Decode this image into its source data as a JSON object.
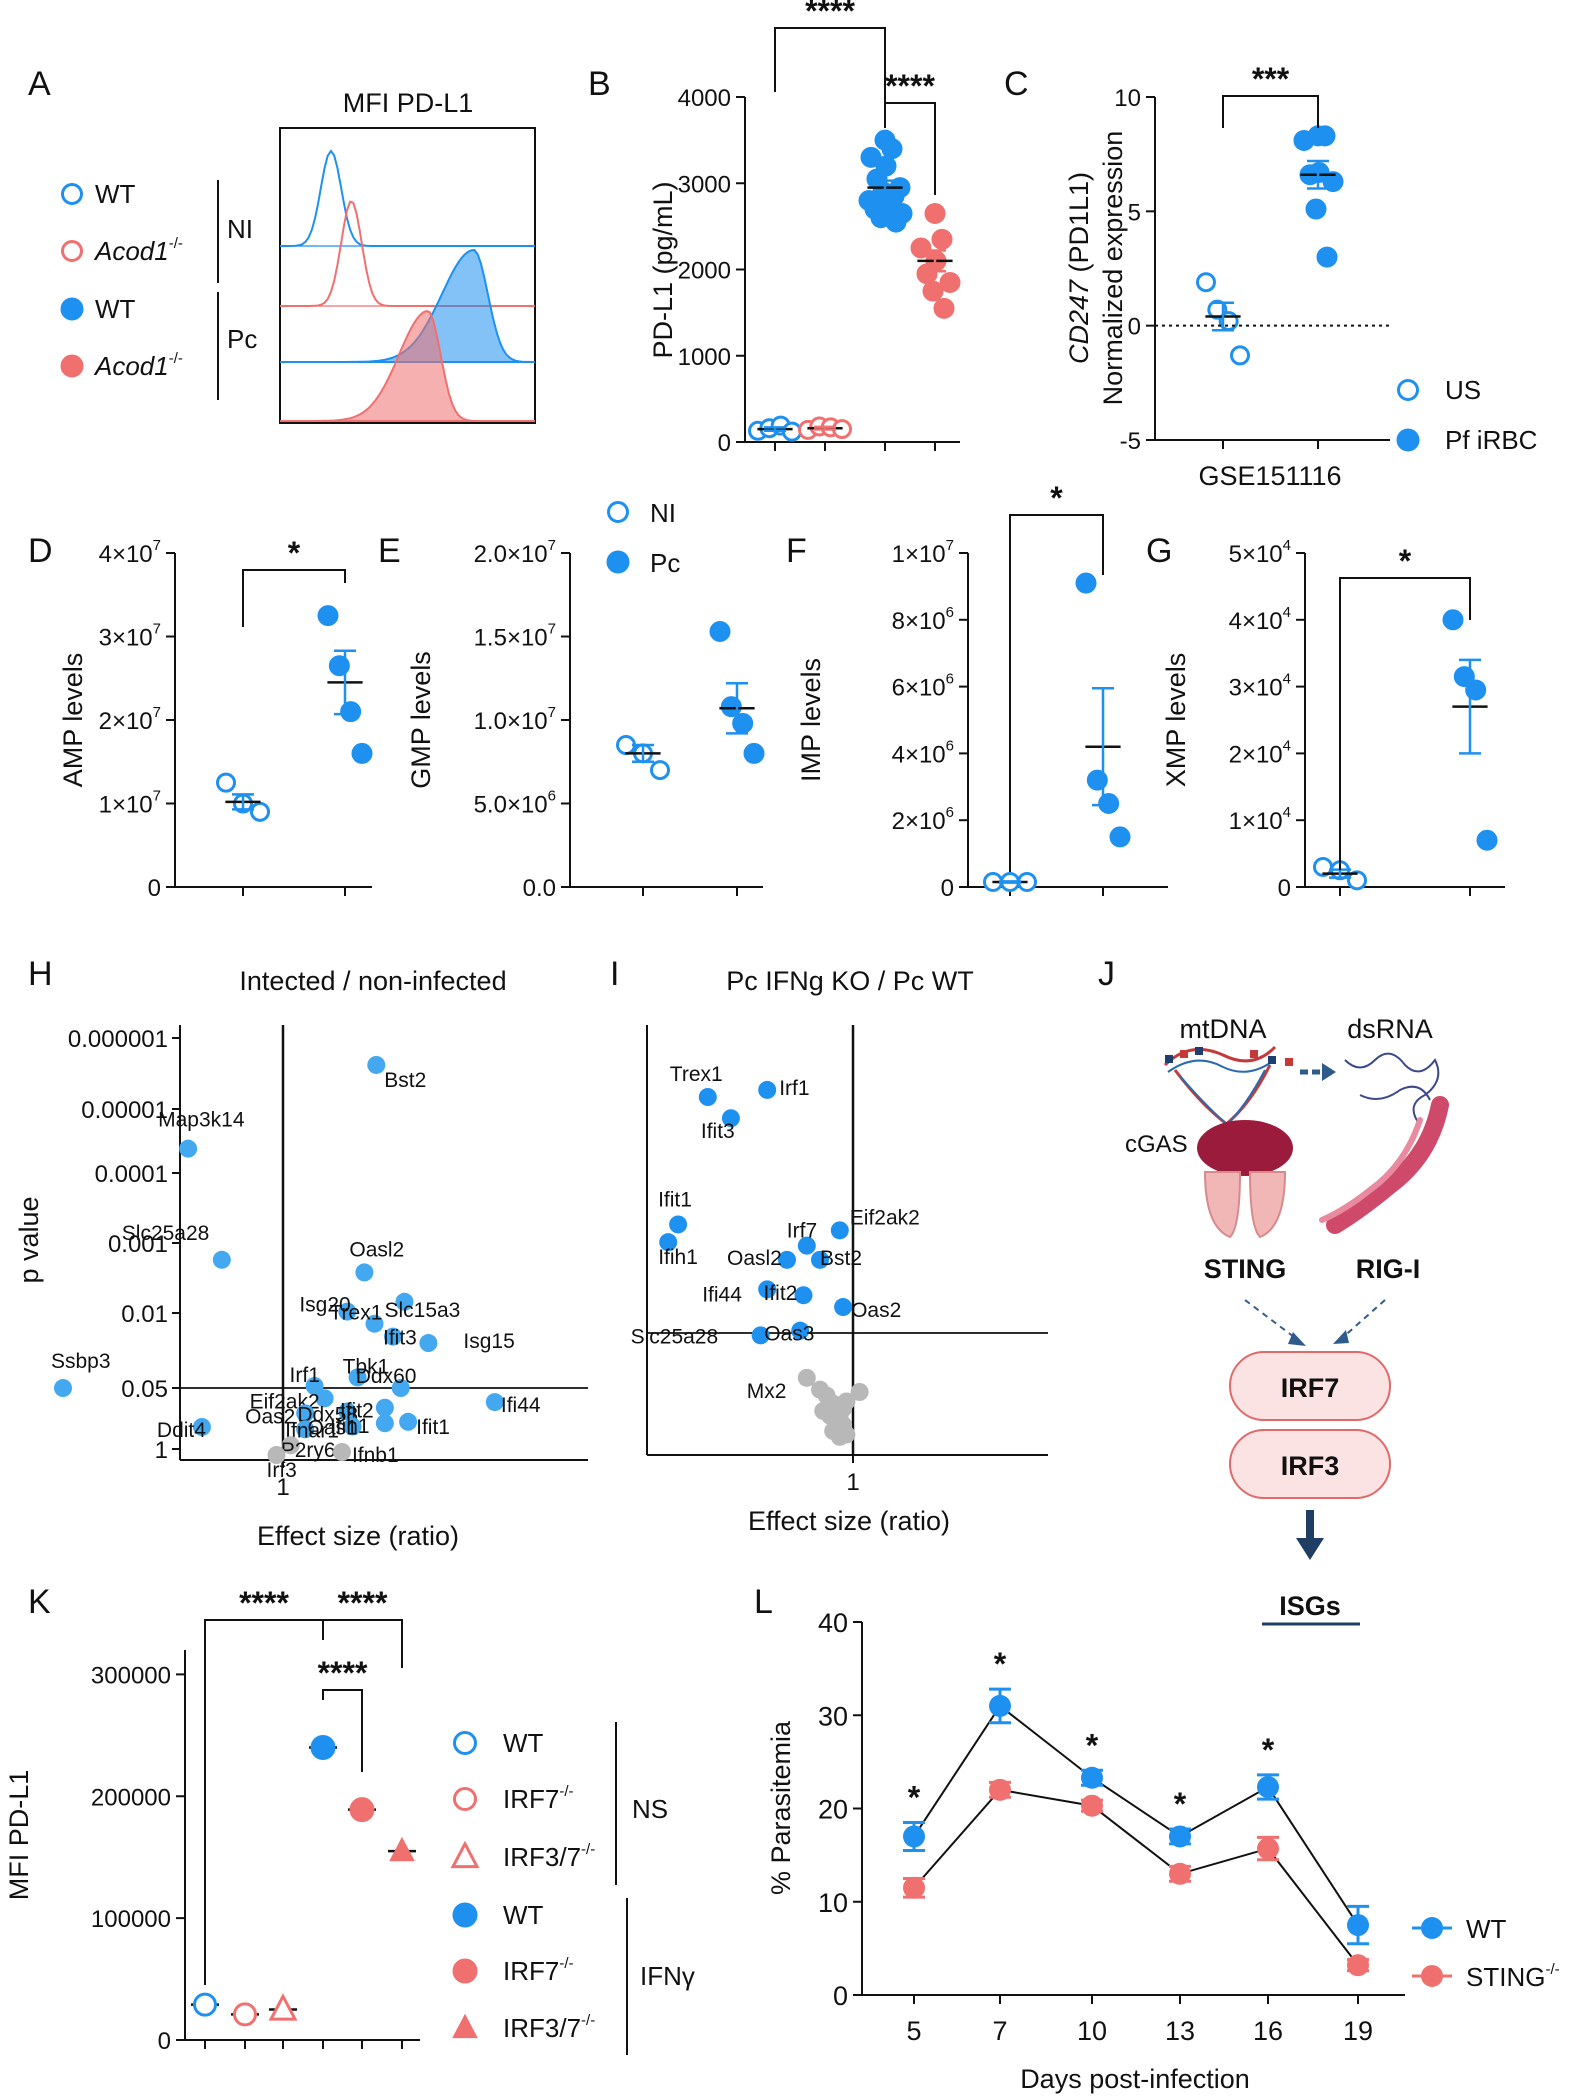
{
  "colors": {
    "wt": "#1e90ef",
    "ko": "#f07070",
    "gray": "#b8b8b8",
    "dark": "#1f3e64",
    "pathway": "#2f5b8a",
    "irfFill": "#fbe3e3",
    "irfStroke": "#e06a6a",
    "sting": "#9b1b3c",
    "rigi": "#cf4a6a"
  },
  "panel_labels": [
    "A",
    "B",
    "C",
    "D",
    "E",
    "F",
    "G",
    "H",
    "I",
    "J",
    "K",
    "L"
  ],
  "chart_data": [
    {
      "panel": "A",
      "type": "histogram",
      "title": "MFI PD-L1",
      "legend": [
        {
          "label": "WT",
          "style": "open-blue",
          "group": "NI"
        },
        {
          "label": "Acod1",
          "sup": "-/-",
          "style": "open-red",
          "group": "NI"
        },
        {
          "label": "WT",
          "style": "filled-blue",
          "group": "Pc"
        },
        {
          "label": "Acod1",
          "sup": "-/-",
          "style": "filled-red",
          "group": "Pc"
        }
      ],
      "groups": [
        "NI",
        "Pc"
      ],
      "traces": [
        {
          "name": "WT NI",
          "peak": 0.2,
          "width": 0.04,
          "filled": false,
          "color": "wt"
        },
        {
          "name": "Acod1-/- NI",
          "peak": 0.28,
          "width": 0.04,
          "filled": false,
          "color": "ko"
        },
        {
          "name": "WT Pc",
          "peak": 0.76,
          "width": 0.1,
          "filled": true,
          "color": "wt"
        },
        {
          "name": "Acod1-/- Pc",
          "peak": 0.58,
          "width": 0.09,
          "filled": true,
          "color": "ko"
        }
      ]
    },
    {
      "panel": "B",
      "type": "scatter",
      "ylabel": "PD-L1 (pg/mL)",
      "ylim": [
        0,
        4000
      ],
      "yticks": [
        "0",
        "1000",
        "2000",
        "3000",
        "4000"
      ],
      "groups": [
        {
          "name": "WT NI",
          "values": [
            130,
            160,
            190,
            120
          ],
          "mean": 150,
          "sem": 20,
          "style": "open-blue"
        },
        {
          "name": "Acod1-/- NI",
          "values": [
            140,
            180,
            170,
            150
          ],
          "mean": 160,
          "sem": 15,
          "style": "open-red"
        },
        {
          "name": "WT Pc",
          "values": [
            3500,
            3400,
            3300,
            3200,
            3050,
            2950,
            2900,
            2850,
            2800,
            2750,
            2700,
            2650,
            2600,
            2550
          ],
          "mean": 2950,
          "sem": 80,
          "style": "filled-blue"
        },
        {
          "name": "Acod1-/- Pc",
          "values": [
            2650,
            2350,
            2250,
            2100,
            1950,
            1850,
            1750,
            1550
          ],
          "mean": 2100,
          "sem": 120,
          "style": "filled-red"
        }
      ],
      "significance": [
        {
          "from": 0,
          "to": 2,
          "label": "****"
        },
        {
          "from": 2,
          "to": 3,
          "label": "****"
        }
      ]
    },
    {
      "panel": "C",
      "type": "scatter",
      "ylabel_italic": "CD247",
      "ylabel_rest": "(PD1L1)",
      "ylabel2": "Normalized expression",
      "xlabel": "GSE151116",
      "ylim": [
        -5,
        10
      ],
      "yticks": [
        "-5",
        "0",
        "5",
        "10"
      ],
      "groups": [
        {
          "name": "US",
          "values": [
            1.9,
            0.7,
            0.2,
            -1.3
          ],
          "mean": 0.4,
          "sem": 0.6,
          "style": "open-blue"
        },
        {
          "name": "Pf iRBC",
          "values": [
            8.3,
            8.3,
            8.1,
            6.7,
            6.6,
            6.3,
            5.1,
            3.0
          ],
          "mean": 6.6,
          "sem": 0.6,
          "style": "filled-blue"
        }
      ],
      "significance": [
        {
          "from": 0,
          "to": 1,
          "label": "***"
        }
      ],
      "legend": [
        {
          "label": "US",
          "style": "open-blue"
        },
        {
          "label": "Pf iRBC",
          "style": "filled-blue"
        }
      ]
    },
    {
      "panel": "D",
      "type": "scatter",
      "ylabel": "AMP levels",
      "ylim": [
        0,
        40000000
      ],
      "yticks": [
        {
          "m": "0",
          "e": ""
        },
        {
          "m": "1×10",
          "e": "7"
        },
        {
          "m": "2×10",
          "e": "7"
        },
        {
          "m": "3×10",
          "e": "7"
        },
        {
          "m": "4×10",
          "e": "7"
        }
      ],
      "groups": [
        {
          "name": "NI",
          "values": [
            12500000,
            10000000,
            9000000
          ],
          "mean": 10200000,
          "sem": 900000,
          "style": "open-blue"
        },
        {
          "name": "Pc",
          "values": [
            32500000,
            26500000,
            21000000,
            16000000
          ],
          "mean": 24500000,
          "sem": 3800000,
          "style": "filled-blue"
        }
      ],
      "significance": [
        {
          "from": 0,
          "to": 1,
          "label": "*"
        }
      ]
    },
    {
      "panel": "E",
      "type": "scatter",
      "ylabel": "GMP levels",
      "ylim": [
        0,
        20000000
      ],
      "yticks": [
        {
          "m": "0.0",
          "e": ""
        },
        {
          "m": "5.0×10",
          "e": "6"
        },
        {
          "m": "1.0×10",
          "e": "7"
        },
        {
          "m": "1.5×10",
          "e": "7"
        },
        {
          "m": "2.0×10",
          "e": "7"
        }
      ],
      "groups": [
        {
          "name": "NI",
          "values": [
            8500000,
            8000000,
            7000000
          ],
          "mean": 8000000,
          "sem": 500000,
          "style": "open-blue"
        },
        {
          "name": "Pc",
          "values": [
            15300000,
            10800000,
            9800000,
            8000000
          ],
          "mean": 10700000,
          "sem": 1500000,
          "style": "filled-blue"
        }
      ],
      "legend": [
        {
          "label": "NI",
          "style": "open-blue"
        },
        {
          "label": "Pc",
          "style": "filled-blue"
        }
      ]
    },
    {
      "panel": "F",
      "type": "scatter",
      "ylabel": "IMP levels",
      "ylim": [
        0,
        10000000
      ],
      "yticks": [
        {
          "m": "0",
          "e": ""
        },
        {
          "m": "2×10",
          "e": "6"
        },
        {
          "m": "4×10",
          "e": "6"
        },
        {
          "m": "6×10",
          "e": "6"
        },
        {
          "m": "8×10",
          "e": "6"
        },
        {
          "m": "1×10",
          "e": "7"
        }
      ],
      "groups": [
        {
          "name": "NI",
          "values": [
            150000,
            150000,
            150000
          ],
          "mean": 150000,
          "sem": 20000,
          "style": "open-blue"
        },
        {
          "name": "Pc",
          "values": [
            9100000,
            3200000,
            2500000,
            1500000
          ],
          "mean": 4200000,
          "sem": 1750000,
          "style": "filled-blue"
        }
      ],
      "significance": [
        {
          "from": 0,
          "to": 1,
          "label": "*"
        }
      ]
    },
    {
      "panel": "G",
      "type": "scatter",
      "ylabel": "XMP levels",
      "ylim": [
        0,
        50000
      ],
      "yticks": [
        {
          "m": "0",
          "e": ""
        },
        {
          "m": "1×10",
          "e": "4"
        },
        {
          "m": "2×10",
          "e": "4"
        },
        {
          "m": "3×10",
          "e": "4"
        },
        {
          "m": "4×10",
          "e": "4"
        },
        {
          "m": "5×10",
          "e": "4"
        }
      ],
      "groups": [
        {
          "name": "NI",
          "values": [
            3000,
            2500,
            1000
          ],
          "mean": 2000,
          "sem": 600,
          "style": "open-blue"
        },
        {
          "name": "Pc",
          "values": [
            40000,
            31500,
            29500,
            7000
          ],
          "mean": 27000,
          "sem": 7000,
          "style": "filled-blue"
        }
      ],
      "significance": [
        {
          "from": 0,
          "to": 1,
          "label": "*"
        }
      ]
    },
    {
      "panel": "H",
      "type": "volcano",
      "title": "Intected / non-infected",
      "xlabel": "Effect size (ratio)",
      "ylabel": "p value",
      "xtick": "1",
      "yticks": [
        "0.000001",
        "0.00001",
        "0.0001",
        "0.001",
        "0.01",
        "0.05",
        "1"
      ],
      "points": [
        {
          "g": "Bst2",
          "x": 1.8,
          "y": 5.62,
          "sig": true
        },
        {
          "g": "Map3k14",
          "x": 0.55,
          "y": 4.38,
          "sig": true
        },
        {
          "g": "Slc25a28",
          "x": 0.68,
          "y": 2.76,
          "sig": true
        },
        {
          "g": "Oasl2",
          "x": 1.67,
          "y": 2.58,
          "sig": true
        },
        {
          "g": "Slc15a3",
          "x": 2.15,
          "y": 2.16,
          "sig": true
        },
        {
          "g": "Isg20",
          "x": 1.5,
          "y": 2.02,
          "sig": true
        },
        {
          "g": "Trex1",
          "x": 1.78,
          "y": 1.9,
          "sig": true
        },
        {
          "g": "Ifit3",
          "x": 2.0,
          "y": 1.78,
          "sig": true
        },
        {
          "g": "Isg15",
          "x": 2.5,
          "y": 1.72,
          "sig": true
        },
        {
          "g": "Ssbp3",
          "x": 0.25,
          "y": 1.3,
          "sig": true
        },
        {
          "g": "Irf1",
          "x": 1.22,
          "y": 1.32,
          "sig": true
        },
        {
          "g": "Tbk1",
          "x": 1.6,
          "y": 1.4,
          "sig": true
        },
        {
          "g": "Ddx60",
          "x": 2.1,
          "y": 1.3,
          "sig": true
        },
        {
          "g": "Eif2ak2",
          "x": 1.3,
          "y": 1.08,
          "sig": true
        },
        {
          "g": "Ifi44",
          "x": 3.8,
          "y": 1.0,
          "sig": true
        },
        {
          "g": "Oas2",
          "x": 1.15,
          "y": 0.76,
          "sig": true
        },
        {
          "g": "Ddx58",
          "x": 1.5,
          "y": 0.8,
          "sig": true
        },
        {
          "g": "Ifit2",
          "x": 1.9,
          "y": 0.88,
          "sig": true
        },
        {
          "g": "Ddit4",
          "x": 0.6,
          "y": 0.47,
          "sig": true
        },
        {
          "g": "Ifnar1",
          "x": 1.15,
          "y": 0.42,
          "sig": true
        },
        {
          "g": "Oas1",
          "x": 1.55,
          "y": 0.48,
          "sig": true
        },
        {
          "g": "Ifih1",
          "x": 1.9,
          "y": 0.55,
          "sig": true
        },
        {
          "g": "Ifit1",
          "x": 2.2,
          "y": 0.58,
          "sig": true
        },
        {
          "g": "P2ry6",
          "x": 1.05,
          "y": 0.08,
          "sig": false
        },
        {
          "g": "Irf3",
          "x": 0.96,
          "y": -0.1,
          "sig": false
        },
        {
          "g": "Ifnb1",
          "x": 1.45,
          "y": -0.05,
          "sig": false
        }
      ]
    },
    {
      "panel": "I",
      "type": "volcano",
      "title": "Pc IFNg KO / Pc WT",
      "xlabel": "Effect size (ratio)",
      "xtick": "1",
      "points": [
        {
          "g": "Trex1",
          "x": -4.4,
          "y": 2.78,
          "sig": true
        },
        {
          "g": "Irf1",
          "x": -2.6,
          "y": 2.84,
          "sig": true
        },
        {
          "g": "Ifit3",
          "x": -3.7,
          "y": 2.6,
          "sig": true
        },
        {
          "g": "Ifit1",
          "x": -5.3,
          "y": 1.7,
          "sig": true
        },
        {
          "g": "Ifih1",
          "x": -5.6,
          "y": 1.55,
          "sig": true
        },
        {
          "g": "Eif2ak2",
          "x": -0.4,
          "y": 1.65,
          "sig": true
        },
        {
          "g": "Irf7",
          "x": -1.4,
          "y": 1.52,
          "sig": true
        },
        {
          "g": "Oasl2",
          "x": -2.0,
          "y": 1.4,
          "sig": true
        },
        {
          "g": "Bst2",
          "x": -1.0,
          "y": 1.4,
          "sig": true
        },
        {
          "g": "Ifi44",
          "x": -2.6,
          "y": 1.15,
          "sig": true
        },
        {
          "g": "Ifit2",
          "x": -1.5,
          "y": 1.1,
          "sig": true
        },
        {
          "g": "Oas2",
          "x": -0.3,
          "y": 1.0,
          "sig": true
        },
        {
          "g": "Slc25a28",
          "x": -2.8,
          "y": 0.76,
          "sig": true
        },
        {
          "g": "Oas3",
          "x": -1.6,
          "y": 0.8,
          "sig": true
        },
        {
          "g": "Mx2",
          "x": -1.4,
          "y": 0.4,
          "sig": false
        }
      ],
      "gray_points": [
        [
          -1.0,
          0.3
        ],
        [
          -0.8,
          0.25
        ],
        [
          -0.6,
          0.18
        ],
        [
          -0.5,
          0.1
        ],
        [
          -0.4,
          0.05
        ],
        [
          -0.3,
          0.0
        ],
        [
          -0.3,
          -0.05
        ],
        [
          -0.2,
          -0.08
        ],
        [
          -0.5,
          -0.02
        ],
        [
          -0.7,
          0.08
        ],
        [
          -0.2,
          0.2
        ],
        [
          -0.4,
          -0.1
        ],
        [
          -0.6,
          -0.05
        ],
        [
          -0.9,
          0.12
        ],
        [
          -0.3,
          0.14
        ],
        [
          0.2,
          0.28
        ]
      ]
    },
    {
      "panel": "K",
      "type": "scatter",
      "ylabel": "MFI PD-L1",
      "ylim": [
        0,
        320000
      ],
      "yticks": [
        "0",
        "100000",
        "200000",
        "300000"
      ],
      "groups": [
        {
          "name": "WT NS",
          "mean": 29000,
          "style": "open-blue",
          "shape": "circle"
        },
        {
          "name": "IRF7-/- NS",
          "mean": 21000,
          "style": "open-red",
          "shape": "circle"
        },
        {
          "name": "IRF3/7-/- NS",
          "mean": 25000,
          "style": "open-red",
          "shape": "triangle"
        },
        {
          "name": "WT IFNγ",
          "mean": 240000,
          "style": "filled-blue",
          "shape": "circle"
        },
        {
          "name": "IRF7-/- IFNγ",
          "mean": 189000,
          "style": "filled-red",
          "shape": "circle"
        },
        {
          "name": "IRF3/7-/- IFNγ",
          "mean": 155000,
          "style": "filled-red",
          "shape": "triangle"
        }
      ],
      "significance": [
        {
          "from": 0,
          "to": 3,
          "label": "****"
        },
        {
          "from": 3,
          "to": 5,
          "label": "****"
        },
        {
          "from": 3,
          "to": 4,
          "label": "****"
        }
      ],
      "legend": [
        {
          "label": "WT",
          "sup": "",
          "style": "open-blue",
          "shape": "circle"
        },
        {
          "label": "IRF7",
          "sup": "-/-",
          "style": "open-red",
          "shape": "circle"
        },
        {
          "label": "IRF3/7",
          "sup": "-/-",
          "style": "open-red",
          "shape": "triangle"
        },
        {
          "label": "WT",
          "sup": "",
          "style": "filled-blue",
          "shape": "circle"
        },
        {
          "label": "IRF7",
          "sup": "-/-",
          "style": "filled-red",
          "shape": "circle"
        },
        {
          "label": "IRF3/7",
          "sup": "-/-",
          "style": "filled-red",
          "shape": "triangle"
        }
      ],
      "legend_groups": [
        "NS",
        "IFNγ"
      ]
    },
    {
      "panel": "L",
      "type": "line",
      "xlabel": "Days post-infection",
      "ylabel": "% Parasitemia",
      "ylim": [
        0,
        40
      ],
      "yticks": [
        "0",
        "10",
        "20",
        "30",
        "40"
      ],
      "categories": [
        "5",
        "7",
        "10",
        "13",
        "16",
        "19"
      ],
      "series": [
        {
          "name": "WT",
          "values": [
            17,
            31,
            23.3,
            17,
            22.3,
            7.5
          ],
          "err": [
            1.5,
            1.8,
            0.8,
            0.8,
            1.3,
            2.0
          ],
          "color": "wt"
        },
        {
          "name": "STING",
          "sup": "-/-",
          "values": [
            11.5,
            22,
            20.3,
            13,
            15.7,
            3.2
          ],
          "err": [
            1.0,
            0.8,
            0.6,
            0.8,
            1.2,
            0.6
          ],
          "color": "ko"
        }
      ],
      "significance": [
        "*",
        "*",
        "*",
        "*",
        "*",
        ""
      ]
    }
  ],
  "pathway": {
    "mtdna": "mtDNA",
    "dsrna": "dsRNA",
    "cgas": "cGAS",
    "sting": "STING",
    "rigi": "RIG-I",
    "irf7": "IRF7",
    "irf3": "IRF3",
    "isgs": "ISGs"
  }
}
